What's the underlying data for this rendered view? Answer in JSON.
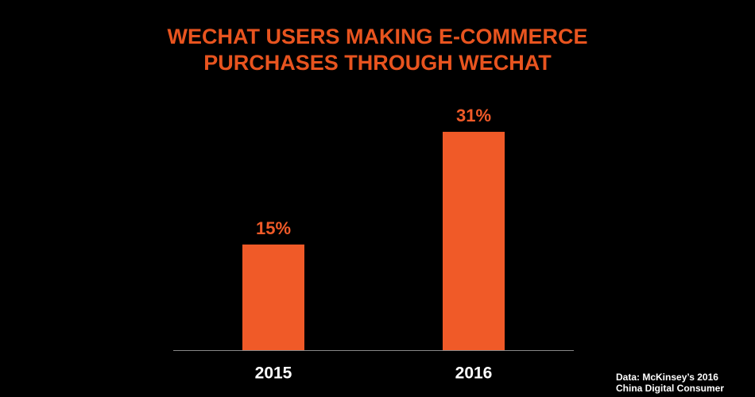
{
  "chart_data": {
    "type": "bar",
    "title": "WECHAT USERS MAKING E-COMMERCE PURCHASES THROUGH WECHAT",
    "categories": [
      "2015",
      "2016"
    ],
    "values": [
      15,
      31
    ],
    "value_labels": [
      "15%",
      "31%"
    ],
    "color": "#f05a28",
    "label_color": "#f05a28",
    "source": "Data: McKinsey’s 2016 China Digital Consumer"
  }
}
